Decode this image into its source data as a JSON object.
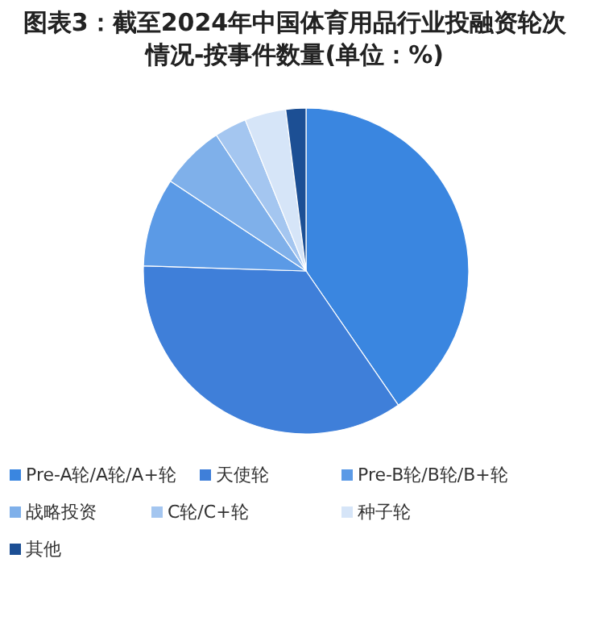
{
  "chart_data": {
    "type": "pie",
    "title": "图表3：截至2024年中国体育用品行业投融资轮次情况-按事件数量(单位：%)",
    "categories": [
      "Pre-A轮/A轮/A+轮",
      "天使轮",
      "Pre-B轮/B轮/B+轮",
      "战略投资",
      "C轮/C+轮",
      "种子轮",
      "其他"
    ],
    "values": [
      40.4,
      35.1,
      8.8,
      6.4,
      3.2,
      4.1,
      2.0
    ],
    "colors": [
      "#3a86e0",
      "#3f7fd9",
      "#5b9ae6",
      "#7fb0ea",
      "#a4c6f0",
      "#d6e5f8",
      "#1c4f94"
    ],
    "legend": "bottom"
  }
}
